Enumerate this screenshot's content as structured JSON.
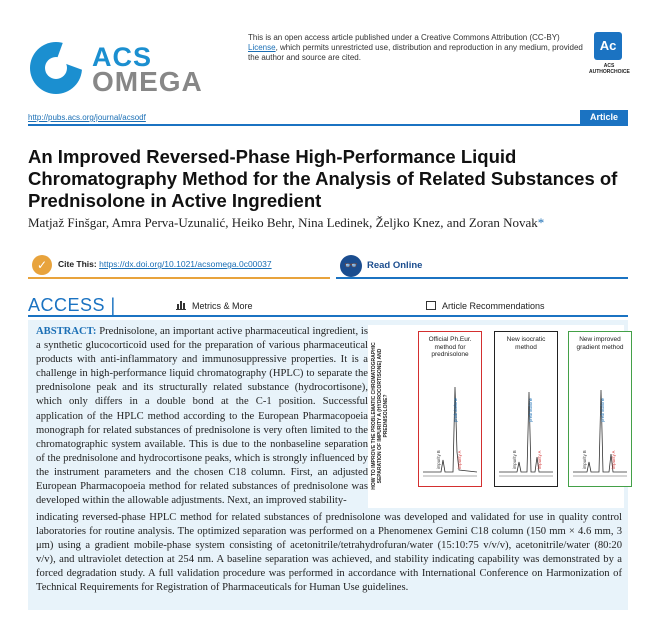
{
  "journal": {
    "logo_top": "ACS",
    "logo_bottom": "OMEGA",
    "url": "http://pubs.acs.org/journal/acsodf",
    "article_type": "Article",
    "license_text_before": "This is an open access article published under a Creative Commons Attribution (CC-BY)",
    "license_link": "License",
    "license_text_after": ", which permits unrestricted use, distribution and reproduction in any medium, provided the author and source are cited.",
    "badge_text": "Ac",
    "badge_caption": "ACS AUTHORCHOICE"
  },
  "article": {
    "title": "An Improved Reversed-Phase High-Performance Liquid Chromatography Method for the Analysis of Related Substances of Prednisolone in Active Ingredient",
    "authors": "Matjaž Finšgar, Amra Perva-Uzunalić, Heiko Behr, Nina Ledinek, Željko Knez, and Zoran Novak",
    "corresponding_mark": "*"
  },
  "actions": {
    "cite_label": "Cite This:",
    "cite_link": "https://dx.doi.org/10.1021/acsomega.0c00037",
    "read_online": "Read Online",
    "access": "ACCESS",
    "metrics": "Metrics & More",
    "recommendations": "Article Recommendations"
  },
  "abstract": {
    "heading": "ABSTRACT:",
    "column_text": "Prednisolone, an important active pharmaceutical ingredient, is a synthetic glucocorticoid used for the preparation of various pharmaceutical products with anti-inflammatory and immunosuppressive properties. It is a challenge in high-performance liquid chromatography (HPLC) to separate the prednisolone peak and its structurally related substance (hydrocortisone), which only differs in a double bond at the C-1 position. Successful application of the HPLC method according to the European Pharmacopoeia monograph for related substances of prednisolone is very often limited to the chromatographic system available. This is due to the nonbaseline separation of the prednisolone and hydrocortisone peaks, which is strongly influenced by the instrument parameters and the chosen C18 column. First, an adjusted European Pharmacopoeia method for related substances of prednisolone was developed within the allowable adjustments. Next, an improved stability-",
    "full_text": "indicating reversed-phase HPLC method for related substances of prednisolone was developed and validated for use in quality control laboratories for routine analysis. The optimized separation was performed on a Phenomenex Gemini C18 column (150 mm × 4.6 mm, 3 μm) using a gradient mobile-phase system consisting of acetonitrile/tetrahydrofuran/water (15:10:75 v/v/v), acetonitrile/water (80:20 v/v), and ultraviolet detection at 254 nm. A baseline separation was achieved, and stability indicating capability was demonstrated by a forced degradation study. A full validation procedure was performed in accordance with International Conference on Harmonization of Technical Requirements for Registration of Pharmaceuticals for Human Use guidelines."
  },
  "toc_graphic": {
    "side_text": "HOW TO IMPROVE THE PROBLEMATIC CHROMATOGRAPHIC SEPARATION OF IMPURITY A (HYDROCORTISONE) AND PREDNISOLONE?",
    "panels": [
      {
        "title": "Official Ph.Eur. method for prednisolone",
        "border": "#d32f2f",
        "peak_label": "prednisolone",
        "impurity_label": "impurity A",
        "small_label": "impurity B"
      },
      {
        "title": "New isocratic method",
        "border": "#222222",
        "peak_label": "prednisolone",
        "impurity_label": "impurity A",
        "small_label": "impurity B"
      },
      {
        "title": "New improved gradient method",
        "border": "#43a047",
        "peak_label": "prednisolone",
        "impurity_label": "impurity A",
        "small_label": "impurity B"
      }
    ]
  },
  "colors": {
    "brand_blue": "#1b73c2",
    "cite_orange": "#e8a33c",
    "abstract_bg": "#e8f3fa",
    "peak_blue": "#1b6fb5",
    "impurity_red": "#d32f2f"
  }
}
